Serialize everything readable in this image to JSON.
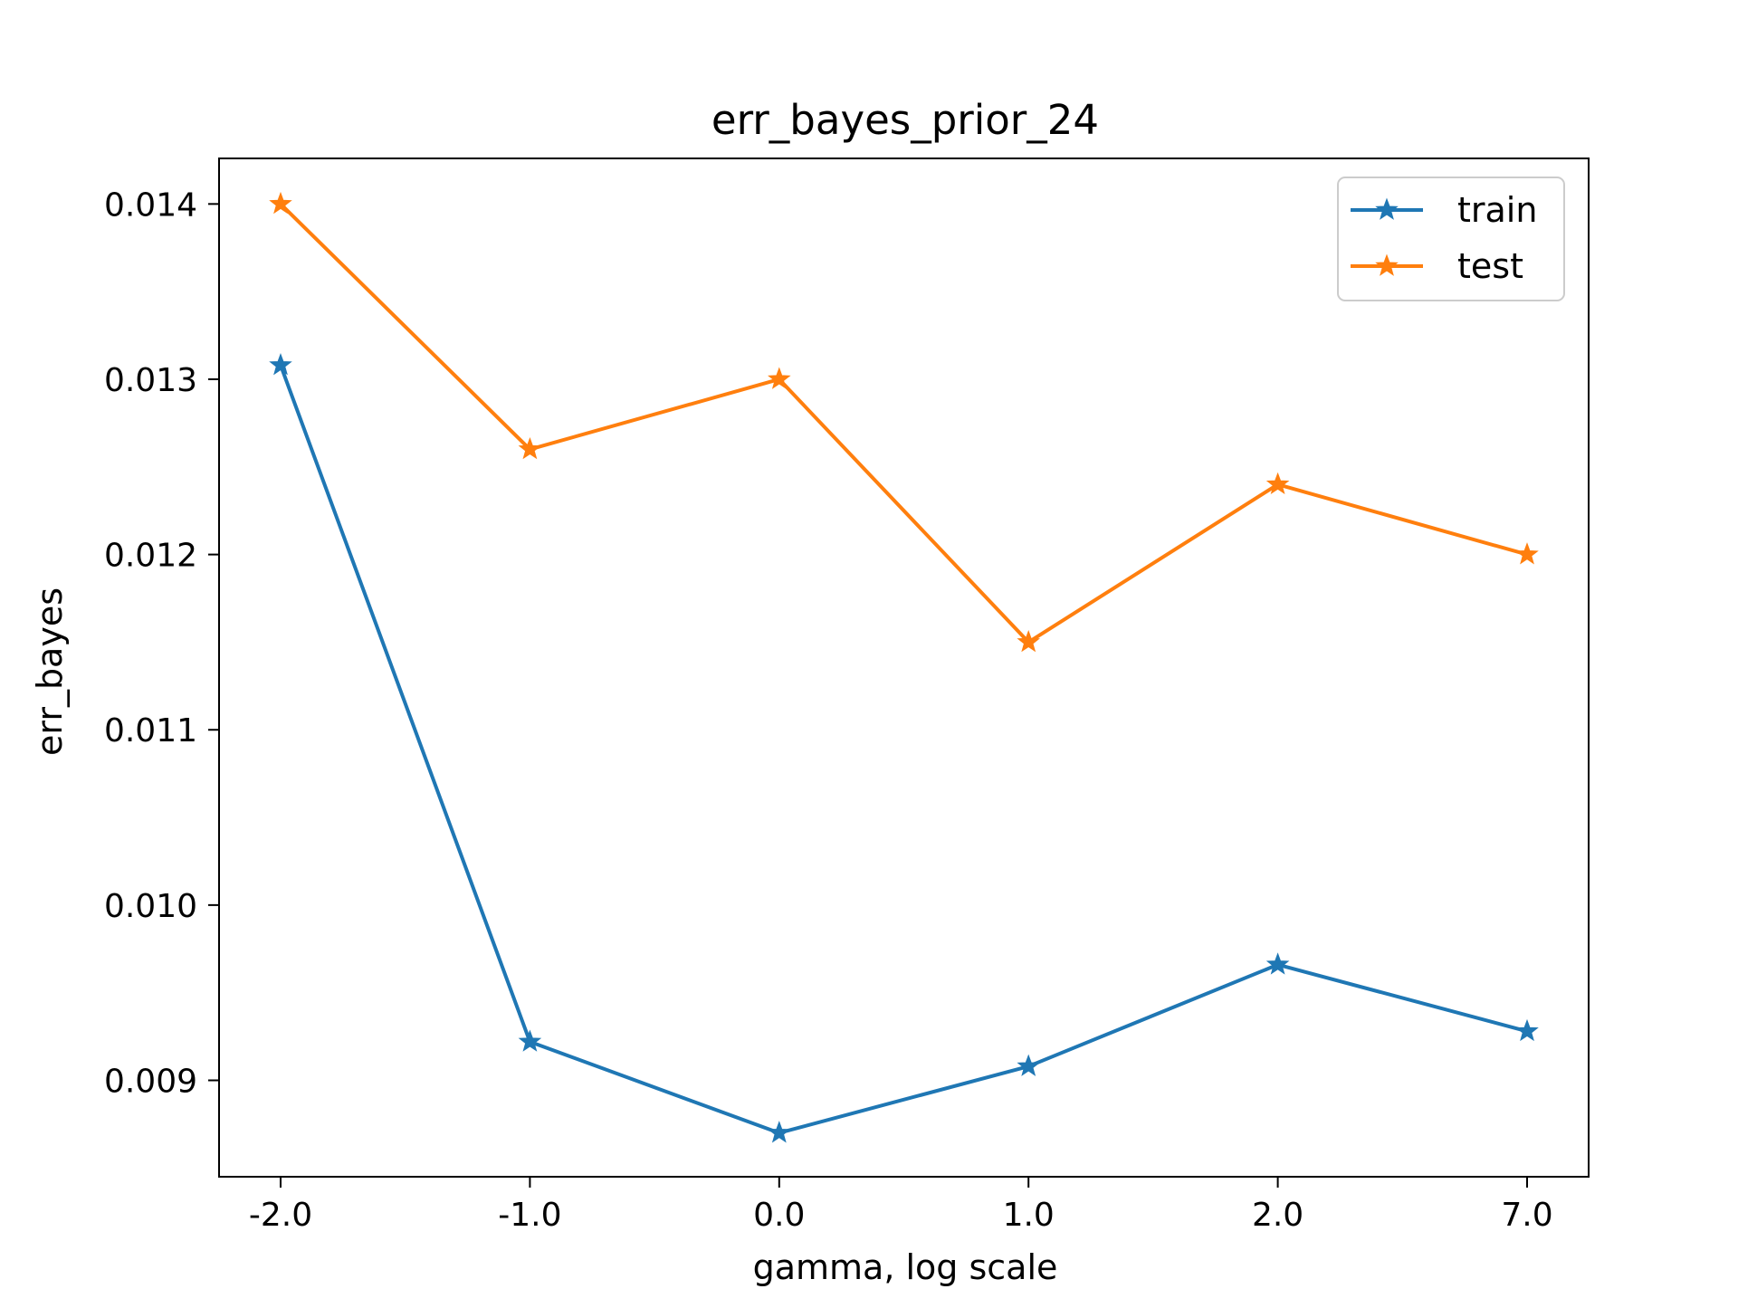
{
  "chart_data": {
    "type": "line",
    "title": "err_bayes_prior_24",
    "xlabel": "gamma, log scale",
    "ylabel": "err_bayes",
    "categories": [
      "-2.0",
      "-1.0",
      "0.0",
      "1.0",
      "2.0",
      "7.0"
    ],
    "series": [
      {
        "name": "train",
        "color": "#1f77b4",
        "marker": "star",
        "values": [
          0.01308,
          0.00922,
          0.0087,
          0.00908,
          0.00966,
          0.00928
        ]
      },
      {
        "name": "test",
        "color": "#ff7f0e",
        "marker": "star",
        "values": [
          0.014,
          0.0126,
          0.013,
          0.0115,
          0.0124,
          0.012
        ]
      }
    ],
    "yticks": [
      0.009,
      0.01,
      0.011,
      0.012,
      0.013,
      0.014
    ],
    "ytick_labels": [
      "0.009",
      "0.010",
      "0.011",
      "0.012",
      "0.013",
      "0.014"
    ],
    "ylim": [
      0.00845,
      0.01426
    ],
    "grid": false,
    "legend_position": "top-right"
  }
}
